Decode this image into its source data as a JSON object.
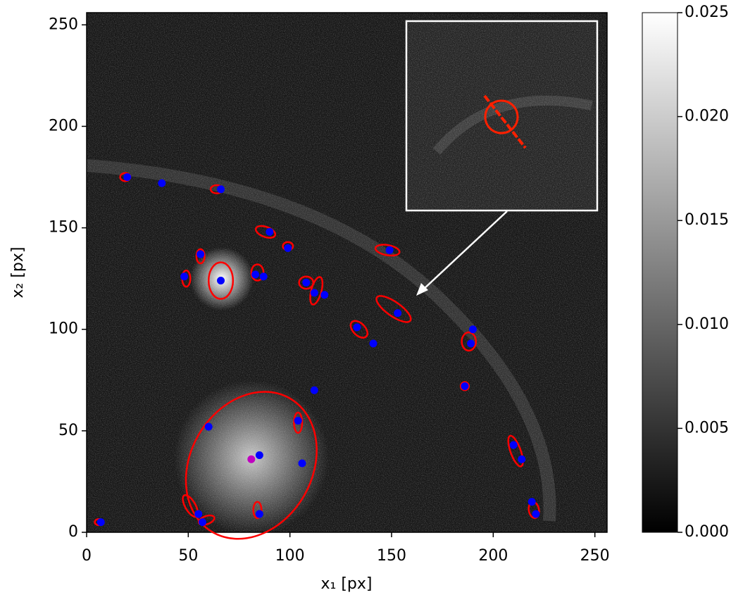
{
  "chart_data": {
    "type": "scatter",
    "xlabel": "x₁ [px]",
    "ylabel": "x₂ [px]",
    "xlim": [
      0,
      256
    ],
    "ylim": [
      0,
      256
    ],
    "xticks": [
      0,
      50,
      100,
      150,
      200,
      250
    ],
    "yticks": [
      0,
      50,
      100,
      150,
      200,
      250
    ],
    "series": [
      {
        "color": "#0000ff",
        "x": [
          20,
          37,
          66,
          90,
          99,
          56,
          149,
          48,
          66,
          83,
          87,
          108,
          112,
          117,
          153,
          133,
          141,
          190,
          189,
          112,
          186,
          60,
          104,
          106,
          85,
          210,
          214,
          219,
          221,
          55,
          57,
          85,
          7
        ],
        "y": [
          175,
          172,
          169,
          148,
          140,
          137,
          139,
          126,
          124,
          127,
          126,
          123,
          118,
          117,
          108,
          101,
          93,
          100,
          93,
          70,
          72,
          52,
          55,
          34,
          38,
          43,
          36,
          15,
          9,
          9,
          5,
          9,
          5
        ]
      },
      {
        "color": "#c000c0",
        "x": [
          81
        ],
        "y": [
          36
        ]
      }
    ],
    "ellipses": {
      "color": "#ff0000",
      "x": [
        81,
        66,
        151,
        134,
        148,
        88,
        108,
        113,
        188,
        211,
        220,
        51,
        59,
        104,
        84,
        49,
        64,
        19,
        56,
        99,
        186,
        6,
        84
      ],
      "y": [
        33,
        124,
        110,
        100,
        139,
        148,
        123,
        119,
        94,
        40,
        11,
        13,
        6,
        54,
        128,
        125,
        169,
        175,
        136,
        141,
        72,
        5,
        11
      ],
      "width": [
        38,
        6,
        10,
        5,
        6,
        5,
        3.5,
        2.5,
        3.5,
        2.5,
        2.5,
        2.5,
        4,
        2,
        3,
        2,
        3,
        2.5,
        2,
        2.5,
        2,
        2,
        2
      ],
      "height": [
        30,
        9,
        3.5,
        3,
        2.5,
        2.5,
        3,
        7,
        4.5,
        8,
        4,
        6,
        2,
        5,
        4,
        4,
        2,
        2,
        3.5,
        2,
        2,
        1.5,
        4
      ],
      "angle": [
        60,
        0,
        -35,
        -45,
        -10,
        -20,
        0,
        -15,
        0,
        20,
        10,
        30,
        20,
        0,
        0,
        0,
        0,
        0,
        0,
        0,
        0,
        0,
        0
      ]
    },
    "colorbar": {
      "lim": [
        0,
        0.025
      ],
      "ticks": [
        {
          "value": 0,
          "label": "0.000"
        },
        {
          "value": 0.005,
          "label": "0.005"
        },
        {
          "value": 0.01,
          "label": "0.010"
        },
        {
          "value": 0.015,
          "label": "0.015"
        },
        {
          "value": 0.02,
          "label": "0.020"
        },
        {
          "value": 0.025,
          "label": "0.025"
        }
      ]
    }
  }
}
